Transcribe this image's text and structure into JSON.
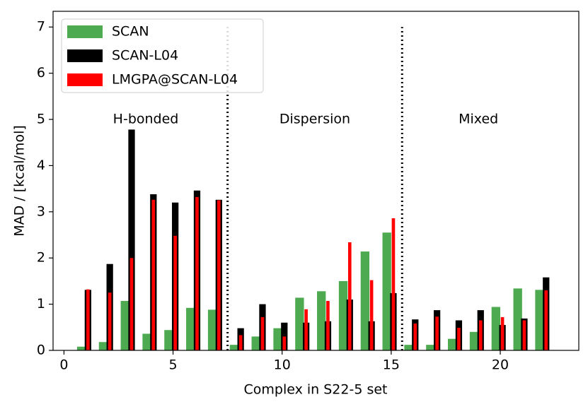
{
  "chart_data": {
    "type": "bar",
    "xlabel": "Complex in S22-5 set",
    "ylabel": "MAD / [kcal/mol]",
    "x": [
      1,
      2,
      3,
      4,
      5,
      6,
      7,
      8,
      9,
      10,
      11,
      12,
      13,
      14,
      15,
      16,
      17,
      18,
      19,
      20,
      21,
      22
    ],
    "series": [
      {
        "name": "SCAN",
        "color": "#4daa50",
        "values": [
          0.08,
          0.18,
          1.07,
          0.36,
          0.44,
          0.92,
          0.88,
          0.12,
          0.3,
          0.48,
          1.14,
          1.28,
          1.5,
          2.14,
          2.55,
          0.12,
          0.12,
          0.25,
          0.4,
          0.94,
          1.34,
          1.31
        ]
      },
      {
        "name": "SCAN-L04",
        "color": "#000000",
        "values": [
          1.31,
          1.87,
          4.78,
          3.38,
          3.2,
          3.46,
          3.26,
          0.48,
          1.0,
          0.6,
          0.6,
          0.63,
          1.1,
          0.63,
          1.24,
          0.67,
          0.87,
          0.65,
          0.87,
          0.55,
          0.69,
          1.58
        ]
      },
      {
        "name": "LMGPA@SCAN-L04",
        "color": "#ff0000",
        "values": [
          1.32,
          1.25,
          2.0,
          3.26,
          2.48,
          3.32,
          3.25,
          0.33,
          0.72,
          0.3,
          0.89,
          1.07,
          2.34,
          1.52,
          2.86,
          0.58,
          0.73,
          0.49,
          0.65,
          0.72,
          0.65,
          1.3
        ]
      }
    ],
    "xlim": [
      -0.5,
      23.6
    ],
    "ylim": [
      0,
      7.34
    ],
    "xticks": [
      0,
      5,
      10,
      15,
      20
    ],
    "yticks": [
      0,
      1,
      2,
      3,
      4,
      5,
      6,
      7
    ],
    "vlines": [
      7.5,
      15.5
    ],
    "vline_top": 7,
    "annotations": [
      {
        "text": "H-bonded",
        "x": 3.75,
        "y": 5
      },
      {
        "text": "Dispersion",
        "x": 11.5,
        "y": 5
      },
      {
        "text": "Mixed",
        "x": 19.0,
        "y": 5
      }
    ],
    "legend": "upper left"
  }
}
